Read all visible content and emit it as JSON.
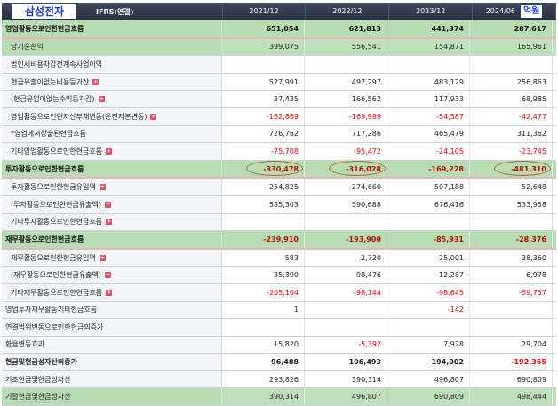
{
  "header": {
    "company": "삼성전자",
    "standard": "IFRS(연결)",
    "periods": [
      "2021/12",
      "2022/12",
      "2023/12",
      "2024/06"
    ],
    "unit": "억원"
  },
  "rows": [
    {
      "label": "영업활동으로인한현금흐름",
      "type": "sec",
      "values": [
        "651,054",
        "621,813",
        "441,374",
        "287,617"
      ]
    },
    {
      "label": "당기순손익",
      "type": "sub ind",
      "values": [
        "399,075",
        "556,541",
        "154,871",
        "165,961"
      ]
    },
    {
      "label": "법인세비용차감전계속사업이익",
      "type": "ind",
      "values": [
        "",
        "",
        "",
        ""
      ]
    },
    {
      "label": "현금유출이없는비용등가산",
      "type": "ind",
      "plus": true,
      "values": [
        "527,991",
        "497,297",
        "483,129",
        "256,863"
      ]
    },
    {
      "label": "(현금유입이없는수익등차감)",
      "type": "ind",
      "plus": true,
      "values": [
        "37,435",
        "166,562",
        "117,933",
        "68,985"
      ]
    },
    {
      "label": "영업활동으로인한자산부채변동(운전자본변동)",
      "type": "ind",
      "plus": true,
      "values": [
        "-162,869",
        "-169,989",
        "-54,587",
        "-42,477"
      ]
    },
    {
      "label": "*영업에서창출된현금흐름",
      "type": "ind",
      "values": [
        "726,762",
        "717,286",
        "465,479",
        "311,362"
      ]
    },
    {
      "label": "기타영업활동으로인한현금흐름",
      "type": "ind",
      "plus": true,
      "values": [
        "-75,708",
        "-95,472",
        "-24,105",
        "-23,745"
      ]
    },
    {
      "label": "투자활동으로인한현금흐름",
      "type": "sec",
      "circled": [
        0,
        1,
        3
      ],
      "values": [
        "-330,478",
        "-316,028",
        "-169,228",
        "-481,310"
      ]
    },
    {
      "label": "투자활동으로인한현금유입액",
      "type": "ind",
      "plus": true,
      "values": [
        "254,825",
        "274,660",
        "507,188",
        "52,648"
      ]
    },
    {
      "label": "(투자활동으로인한현금유출액)",
      "type": "ind",
      "plus": true,
      "values": [
        "585,303",
        "590,688",
        "676,416",
        "533,958"
      ]
    },
    {
      "label": "기타투자활동으로인한현금흐름",
      "type": "ind",
      "plus": true,
      "values": [
        "",
        "",
        "",
        ""
      ]
    },
    {
      "label": "재무활동으로인한현금흐름",
      "type": "sec",
      "values": [
        "-239,910",
        "-193,900",
        "-85,931",
        "-28,376"
      ]
    },
    {
      "label": "재무활동으로인한현금유입액",
      "type": "ind",
      "plus": true,
      "values": [
        "583",
        "2,720",
        "25,001",
        "38,360"
      ]
    },
    {
      "label": "(재무활동으로인한현금유출액)",
      "type": "ind",
      "plus": true,
      "values": [
        "35,390",
        "98,476",
        "12,287",
        "6,978"
      ]
    },
    {
      "label": "기타재무활동으로인한현금흐름",
      "type": "ind",
      "plus": true,
      "values": [
        "-205,104",
        "-98,144",
        "-98,645",
        "-59,757"
      ]
    },
    {
      "label": "영업투자재무활동기타현금흐름",
      "type": "plain",
      "values": [
        "1",
        "",
        "-142",
        ""
      ]
    },
    {
      "label": "연결범위변동으로인한현금의증가",
      "type": "plain",
      "values": [
        "",
        "",
        "",
        ""
      ]
    },
    {
      "label": "환율변동효과",
      "type": "plain",
      "values": [
        "15,820",
        "-5,392",
        "7,928",
        "29,704"
      ]
    },
    {
      "label": "현금및현금성자산의증가",
      "type": "plain bold",
      "values": [
        "96,488",
        "106,493",
        "194,002",
        "-192,365"
      ]
    },
    {
      "label": "기초현금및현금성자산",
      "type": "plain",
      "values": [
        "293,826",
        "390,314",
        "496,807",
        "690,809"
      ]
    },
    {
      "label": "기말현금및현금성자산",
      "type": "sub",
      "values": [
        "390,314",
        "496,807",
        "690,809",
        "498,444"
      ]
    }
  ]
}
